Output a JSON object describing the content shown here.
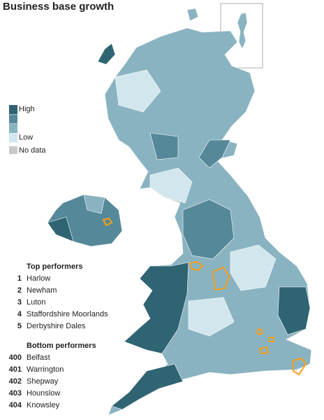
{
  "title": "Business base growth",
  "legend": {
    "items": [
      {
        "label": "High",
        "color": "#2f6473"
      },
      {
        "label": null,
        "color": "#55899a"
      },
      {
        "label": null,
        "color": "#8ab3c1"
      },
      {
        "label": "Low",
        "color": "#d2e6ed"
      }
    ],
    "no_data": {
      "label": "No data",
      "color": "#c9c9c9"
    }
  },
  "top_performers": {
    "heading": "Top performers",
    "rows": [
      {
        "rank": 1,
        "name": "Harlow"
      },
      {
        "rank": 2,
        "name": "Newham"
      },
      {
        "rank": 3,
        "name": "Luton"
      },
      {
        "rank": 4,
        "name": "Staffordshire Moorlands"
      },
      {
        "rank": 5,
        "name": "Derbyshire Dales"
      }
    ]
  },
  "bottom_performers": {
    "heading": "Bottom performers",
    "rows": [
      {
        "rank": 400,
        "name": "Belfast"
      },
      {
        "rank": 401,
        "name": "Warrington"
      },
      {
        "rank": 402,
        "name": "Shepway"
      },
      {
        "rank": 403,
        "name": "Hounslow"
      },
      {
        "rank": 404,
        "name": "Knowsley"
      }
    ]
  }
}
